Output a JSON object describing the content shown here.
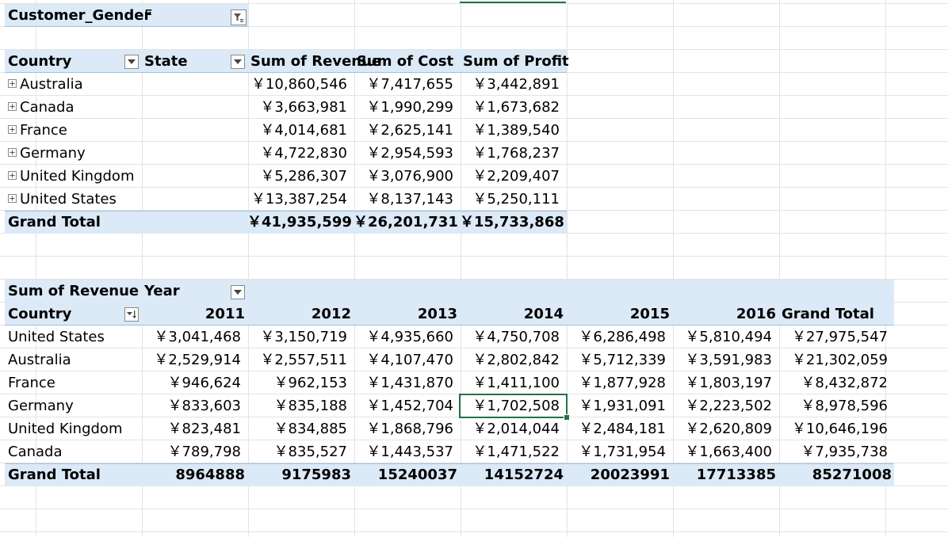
{
  "filter": {
    "field": "Customer_Gender",
    "value": "F"
  },
  "pivot1": {
    "headers": {
      "country": "Country",
      "state": "State",
      "revenue": "Sum of Revenue",
      "cost": "Sum of Cost",
      "profit": "Sum of Profit"
    },
    "rows": [
      {
        "country": "Australia",
        "revenue": "￥10,860,546",
        "cost": "￥7,417,655",
        "profit": "￥3,442,891"
      },
      {
        "country": "Canada",
        "revenue": "￥3,663,981",
        "cost": "￥1,990,299",
        "profit": "￥1,673,682"
      },
      {
        "country": "France",
        "revenue": "￥4,014,681",
        "cost": "￥2,625,141",
        "profit": "￥1,389,540"
      },
      {
        "country": "Germany",
        "revenue": "￥4,722,830",
        "cost": "￥2,954,593",
        "profit": "￥1,768,237"
      },
      {
        "country": "United Kingdom",
        "revenue": "￥5,286,307",
        "cost": "￥3,076,900",
        "profit": "￥2,209,407"
      },
      {
        "country": "United States",
        "revenue": "￥13,387,254",
        "cost": "￥8,137,143",
        "profit": "￥5,250,111"
      }
    ],
    "total": {
      "label": "Grand Total",
      "revenue": "￥41,935,599",
      "cost": "￥26,201,731",
      "profit": "￥15,733,868"
    }
  },
  "pivot2": {
    "value_label": "Sum of Revenue",
    "col_field": "Year",
    "row_field": "Country",
    "years": [
      "2011",
      "2012",
      "2013",
      "2014",
      "2015",
      "2016"
    ],
    "grand_total_label": "Grand Total",
    "rows": [
      {
        "country": "United States",
        "values": [
          "￥3,041,468",
          "￥3,150,719",
          "￥4,935,660",
          "￥4,750,708",
          "￥6,286,498",
          "￥5,810,494"
        ],
        "total": "￥27,975,547"
      },
      {
        "country": "Australia",
        "values": [
          "￥2,529,914",
          "￥2,557,511",
          "￥4,107,470",
          "￥2,802,842",
          "￥5,712,339",
          "￥3,591,983"
        ],
        "total": "￥21,302,059"
      },
      {
        "country": "France",
        "values": [
          "￥946,624",
          "￥962,153",
          "￥1,431,870",
          "￥1,411,100",
          "￥1,877,928",
          "￥1,803,197"
        ],
        "total": "￥8,432,872"
      },
      {
        "country": "Germany",
        "values": [
          "￥833,603",
          "￥835,188",
          "￥1,452,704",
          "￥1,702,508",
          "￥1,931,091",
          "￥2,223,502"
        ],
        "total": "￥8,978,596"
      },
      {
        "country": "United Kingdom",
        "values": [
          "￥823,481",
          "￥834,885",
          "￥1,868,796",
          "￥2,014,044",
          "￥2,484,181",
          "￥2,620,809"
        ],
        "total": "￥10,646,196"
      },
      {
        "country": "Canada",
        "values": [
          "￥789,798",
          "￥835,527",
          "￥1,443,537",
          "￥1,471,522",
          "￥1,731,954",
          "￥1,663,400"
        ],
        "total": "￥7,935,738"
      }
    ],
    "totals": {
      "label": "Grand Total",
      "values": [
        "8964888",
        "9175983",
        "15240037",
        "14152724",
        "20023991",
        "17713385"
      ],
      "total": "85271008"
    }
  },
  "selection": {
    "row": 3,
    "col": 3,
    "value": "￥1,702,508"
  },
  "colors": {
    "header_band": "#dce9f6",
    "band_rule": "#9ec1e3",
    "gridline": "#e3e3e3",
    "selection": "#217346"
  },
  "icons": {
    "filter_button": "filter-applied-icon",
    "dropdown_button": "chevron-down-icon",
    "sort_button": "sort-desc-icon",
    "expander": "plus-box-icon"
  }
}
